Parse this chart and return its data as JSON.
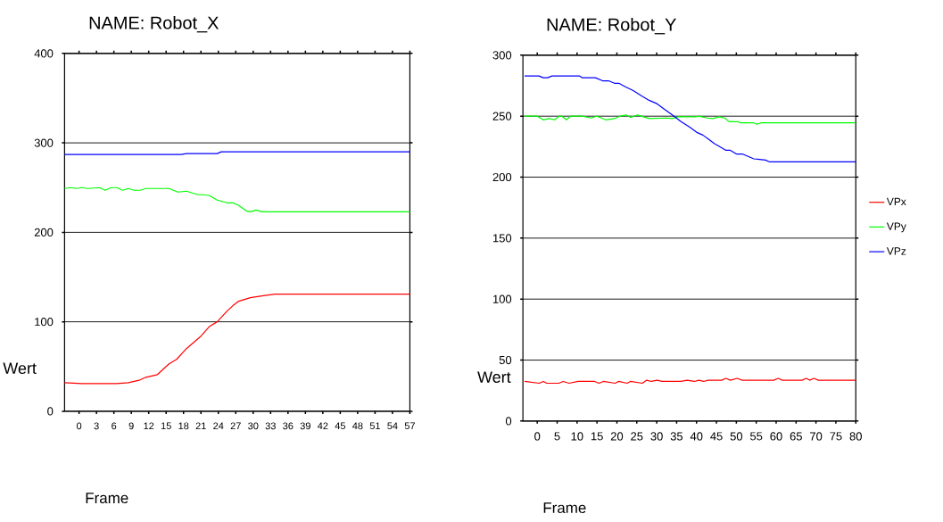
{
  "chart_data": [
    {
      "type": "line",
      "title": "NAME:   Robot_X",
      "xlabel": "Frame",
      "ylabel": "Wert",
      "xlim": [
        -2.5,
        57
      ],
      "ylim": [
        0,
        400
      ],
      "xticks": [
        0,
        3,
        6,
        9,
        12,
        15,
        18,
        21,
        24,
        27,
        30,
        33,
        36,
        39,
        42,
        45,
        48,
        51,
        54,
        57
      ],
      "yticks": [
        0,
        100,
        200,
        300,
        400
      ],
      "grid": "y",
      "legend": false,
      "series": [
        {
          "color": "#ff0000",
          "x": [
            -2.5,
            0.5,
            3.5,
            6.5,
            8.5,
            10.5,
            11.5,
            13.5,
            15.5,
            16.8,
            18.5,
            21,
            22.5,
            23.8,
            25.5,
            26.5,
            27.5,
            29.5,
            31.5,
            33.8,
            57
          ],
          "values": [
            32,
            31,
            31,
            31,
            32,
            35,
            38,
            41,
            53,
            58,
            70,
            84,
            95,
            100,
            112,
            118,
            123,
            127,
            129,
            131,
            131
          ]
        },
        {
          "color": "#00ff00",
          "x": [
            -2.5,
            -1.5,
            -0.5,
            0.5,
            1.5,
            3.5,
            4.5,
            5.5,
            6.5,
            7.5,
            8.5,
            9.5,
            10.5,
            11.5,
            15.5,
            17,
            18.5,
            20.5,
            21.5,
            22.5,
            23.8,
            25.5,
            26.5,
            27.5,
            28.8,
            29.5,
            30.5,
            31.5,
            57
          ],
          "values": [
            249,
            250,
            249,
            250,
            249,
            250,
            247,
            250,
            250,
            247,
            249,
            247,
            247,
            249,
            249,
            245,
            246,
            242,
            242,
            241,
            236,
            233,
            233,
            230,
            224,
            223,
            225,
            223,
            223
          ]
        },
        {
          "color": "#0000ff",
          "x": [
            -2.5,
            17.6,
            18.5,
            23.8,
            24.5,
            57
          ],
          "values": [
            287,
            287,
            288,
            288,
            290,
            290
          ]
        }
      ]
    },
    {
      "type": "line",
      "title": "NAME:   Robot_Y",
      "xlabel": "Frame",
      "ylabel": "Wert",
      "xlim": [
        -3.6,
        80
      ],
      "ylim": [
        0,
        300
      ],
      "xticks": [
        0,
        5,
        10,
        15,
        20,
        25,
        30,
        35,
        40,
        45,
        50,
        55,
        60,
        65,
        70,
        75,
        80
      ],
      "yticks": [
        0,
        50,
        100,
        150,
        200,
        250,
        300
      ],
      "grid": "y",
      "legend": "right",
      "series": [
        {
          "name": "VPx",
          "color": "#ff0000",
          "x": [
            -3.2,
            0.5,
            1.5,
            2.4,
            5.4,
            6.5,
            8.0,
            10.3,
            14.4,
            15.5,
            16.6,
            19.6,
            20.4,
            22.6,
            23.4,
            26.4,
            27.5,
            28.6,
            30.1,
            31.3,
            36.1,
            37.6,
            39.5,
            40.6,
            41.8,
            42.9,
            46.3,
            47.4,
            48.5,
            50.2,
            51.5,
            59.4,
            60.5,
            61.6,
            66.5,
            67.6,
            68.4,
            69.5,
            70.6,
            80
          ],
          "values": [
            32.5,
            31,
            32.5,
            31,
            31,
            32.5,
            31,
            32.5,
            32.5,
            31,
            32.5,
            31,
            32.5,
            31,
            32.5,
            31,
            33.5,
            32.5,
            33.5,
            32.5,
            32.5,
            33.5,
            32.5,
            33.5,
            32.5,
            33.5,
            33.5,
            35,
            33.5,
            35,
            33.5,
            33.5,
            35,
            33.5,
            33.5,
            35,
            33.5,
            35,
            33.5,
            33.5
          ]
        },
        {
          "name": "VPy",
          "color": "#00ff00",
          "x": [
            -3.2,
            0,
            1.5,
            3.0,
            4.4,
            5.5,
            6.2,
            7.3,
            8.4,
            11.3,
            13.5,
            15.0,
            17.2,
            19.4,
            20.8,
            22.3,
            23.4,
            25.2,
            28.1,
            32.5,
            33.9,
            35.4,
            39.8,
            40.5,
            42.7,
            44.2,
            45.6,
            47.1,
            48.2,
            50.4,
            51.1,
            54.4,
            55.1,
            56.2,
            80
          ],
          "values": [
            250,
            250,
            247,
            248,
            247,
            250,
            250,
            247,
            250,
            250,
            248.5,
            250,
            247,
            248,
            250,
            251,
            249,
            251,
            248,
            248.5,
            248,
            249.5,
            249.5,
            250,
            248.5,
            248,
            249.5,
            248.5,
            245.5,
            245.5,
            244.5,
            244.5,
            243.5,
            244.5,
            244.5
          ]
        },
        {
          "name": "VPz",
          "color": "#0000ff",
          "x": [
            -3.2,
            0.4,
            1.5,
            2.6,
            3.7,
            10.6,
            11.3,
            14.6,
            16.4,
            17.9,
            19.4,
            20.5,
            21.9,
            24.1,
            26.3,
            28.1,
            29.9,
            31.8,
            33.9,
            36.1,
            38.3,
            40.2,
            41.6,
            43.1,
            44.5,
            45.6,
            47.4,
            48.5,
            50.0,
            51.5,
            54.4,
            55.8,
            57.3,
            58.4,
            80
          ],
          "values": [
            283,
            283,
            281.5,
            281.5,
            283,
            283,
            281.5,
            281.5,
            279,
            279,
            277,
            277,
            274.5,
            271,
            266.5,
            263,
            260.5,
            256,
            251,
            245.5,
            241,
            236.5,
            234.5,
            231,
            227.5,
            225.5,
            222,
            222,
            219,
            219,
            215,
            214.5,
            214,
            212.5,
            212.5
          ]
        }
      ]
    }
  ]
}
